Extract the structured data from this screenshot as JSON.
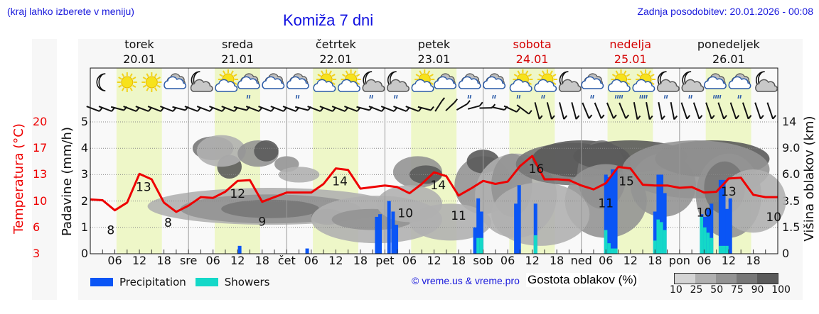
{
  "header": {
    "location_hint": "(kraj lahko izberete v meniju)",
    "title": "Komiža 7 dni",
    "last_update": "Zadnja posodobitev: 20.01.2026 - 00:08"
  },
  "days": [
    {
      "name": "torek",
      "date": "20.01",
      "weekend": false
    },
    {
      "name": "sreda",
      "date": "21.01",
      "weekend": false
    },
    {
      "name": "četrtek",
      "date": "22.01",
      "weekend": false
    },
    {
      "name": "petek",
      "date": "23.01",
      "weekend": false
    },
    {
      "name": "sobota",
      "date": "24.01",
      "weekend": true
    },
    {
      "name": "nedelja",
      "date": "25.01",
      "weekend": true
    },
    {
      "name": "ponedeljek",
      "date": "26.01",
      "weekend": false
    }
  ],
  "weather_icons": [
    "moon",
    "sun",
    "sun",
    "cloudy",
    "moon-cloud",
    "sun-cloud",
    "cloud-light-rain",
    "cloudy",
    "cloud-light-rain",
    "sun-cloud",
    "sun-cloud",
    "moon-cloud-rain",
    "moon-cloud-rain",
    "sun-cloud",
    "cloudy",
    "cloud-light-rain",
    "cloud-light-rain",
    "sun-cloud-rain",
    "sun-cloud-rain",
    "moon-cloud",
    "cloud-light-rain",
    "sun-cloud-heavy-rain",
    "sun-cloud-heavy-rain",
    "moon-cloud-rain",
    "moon-cloud-rain",
    "cloud-heavy-rain",
    "cloud-light-rain",
    "moon-cloud"
  ],
  "axes": {
    "left_temp_label": "Temperatura (°C)",
    "left_precip_label": "Padavine (mm/h)",
    "right_label": "Višina oblakov (km)",
    "temp_ticks": [
      "20",
      "17",
      "13",
      "10",
      "6",
      "3"
    ],
    "precip_ticks": [
      "5",
      "4",
      "3",
      "2",
      "1",
      "0"
    ],
    "cloud_height_ticks": [
      "14",
      "9.0",
      "6.0",
      "3.5",
      "1.5",
      "0"
    ],
    "x_ticks": [
      "06",
      "12",
      "18",
      "sre",
      "06",
      "12",
      "18",
      "čet",
      "06",
      "12",
      "18",
      "pet",
      "06",
      "12",
      "18",
      "sob",
      "06",
      "12",
      "18",
      "ned",
      "06",
      "12",
      "18",
      "pon",
      "06",
      "12",
      "18"
    ]
  },
  "legend": {
    "precipitation": "Precipitation",
    "showers": "Showers",
    "precipitation_color": "#0a55f5",
    "showers_color": "#14d8c8",
    "credit": "© vreme.us & vreme.pro",
    "cloud_density_title": "Gostota oblakov (%)",
    "cloud_density_values": [
      "10",
      "25",
      "50",
      "75",
      "90",
      "100"
    ],
    "cloud_density_colors": [
      "#d4d4d4",
      "#b0b0b0",
      "#939393",
      "#777777",
      "#5a5a5a"
    ]
  },
  "chart_data": {
    "type": "line",
    "title": "Komiža 7 dni",
    "xlabel": "",
    "ylabel": "Padavine (mm/h)",
    "ylim": [
      0,
      5
    ],
    "temp_range": [
      3,
      20
    ],
    "grid": true,
    "x_hours_start": "20.01 00:00",
    "temperature_series": {
      "name": "Temperatura (°C)",
      "color": "#ee0000",
      "points": [
        [
          0,
          10.0
        ],
        [
          3,
          9.9
        ],
        [
          6,
          8.6
        ],
        [
          9,
          9.6
        ],
        [
          12,
          13.3
        ],
        [
          15,
          12.6
        ],
        [
          18,
          9.6
        ],
        [
          21,
          8.4
        ],
        [
          24,
          9.2
        ],
        [
          27,
          10.3
        ],
        [
          30,
          10.2
        ],
        [
          33,
          11.0
        ],
        [
          36,
          12.4
        ],
        [
          39,
          12.5
        ],
        [
          42,
          9.7
        ],
        [
          45,
          10.3
        ],
        [
          48,
          10.9
        ],
        [
          51,
          10.9
        ],
        [
          54,
          10.9
        ],
        [
          57,
          12.0
        ],
        [
          60,
          14.0
        ],
        [
          63,
          13.8
        ],
        [
          66,
          11.4
        ],
        [
          69,
          11.6
        ],
        [
          72,
          11.8
        ],
        [
          75,
          11.6
        ],
        [
          78,
          10.8
        ],
        [
          81,
          12.0
        ],
        [
          84,
          13.5
        ],
        [
          87,
          13.0
        ],
        [
          90,
          10.5
        ],
        [
          93,
          11.4
        ],
        [
          96,
          12.4
        ],
        [
          99,
          12.0
        ],
        [
          102,
          12.3
        ],
        [
          105,
          14.3
        ],
        [
          108,
          15.6
        ],
        [
          111,
          12.6
        ],
        [
          114,
          12.6
        ],
        [
          117,
          12.5
        ],
        [
          120,
          11.8
        ],
        [
          123,
          11.3
        ],
        [
          126,
          12.1
        ],
        [
          129,
          14.2
        ],
        [
          132,
          14.0
        ],
        [
          135,
          11.9
        ],
        [
          138,
          11.8
        ],
        [
          141,
          11.8
        ],
        [
          144,
          11.5
        ],
        [
          147,
          11.6
        ],
        [
          150,
          10.9
        ],
        [
          153,
          11.0
        ],
        [
          156,
          12.7
        ],
        [
          159,
          12.8
        ],
        [
          162,
          10.6
        ],
        [
          165,
          10.3
        ],
        [
          168,
          10.3
        ]
      ],
      "labels": [
        {
          "hour": 5,
          "value": "8",
          "pos": "below"
        },
        {
          "hour": 13,
          "value": "13",
          "pos": "above"
        },
        {
          "hour": 19,
          "value": "8",
          "pos": "below"
        },
        {
          "hour": 36,
          "value": "12",
          "pos": "above"
        },
        {
          "hour": 42,
          "value": "9",
          "pos": "below"
        },
        {
          "hour": 61,
          "value": "14",
          "pos": "above"
        },
        {
          "hour": 77,
          "value": "10",
          "pos": "below"
        },
        {
          "hour": 85,
          "value": "14",
          "pos": "above"
        },
        {
          "hour": 90,
          "value": "11",
          "pos": "below"
        },
        {
          "hour": 109,
          "value": "16",
          "pos": "above"
        },
        {
          "hour": 126,
          "value": "11",
          "pos": "below"
        },
        {
          "hour": 131,
          "value": "15",
          "pos": "above"
        },
        {
          "hour": 150,
          "value": "10",
          "pos": "below"
        },
        {
          "hour": 156,
          "value": "13",
          "pos": "above"
        },
        {
          "hour": 167,
          "value": "10",
          "pos": "below"
        }
      ]
    },
    "precipitation_bars": [
      {
        "hour": 36.5,
        "total": 0.3,
        "showers": 0
      },
      {
        "hour": 53.0,
        "total": 0.2,
        "showers": 0
      },
      {
        "hour": 70.0,
        "total": 1.4,
        "showers": 0
      },
      {
        "hour": 70.8,
        "total": 1.5,
        "showers": 0
      },
      {
        "hour": 73.0,
        "total": 2.0,
        "showers": 0
      },
      {
        "hour": 74.0,
        "total": 1.6,
        "showers": 0
      },
      {
        "hour": 74.8,
        "total": 1.1,
        "showers": 0
      },
      {
        "hour": 94.0,
        "total": 1.0,
        "showers": 0
      },
      {
        "hour": 94.8,
        "total": 2.1,
        "showers": 0.6
      },
      {
        "hour": 95.6,
        "total": 1.6,
        "showers": 0.6
      },
      {
        "hour": 104.0,
        "total": 1.9,
        "showers": 0
      },
      {
        "hour": 104.8,
        "total": 2.6,
        "showers": 0
      },
      {
        "hour": 108.8,
        "total": 1.9,
        "showers": 0.7
      },
      {
        "hour": 126.0,
        "total": 3.0,
        "showers": 0.9
      },
      {
        "hour": 126.8,
        "total": 2.9,
        "showers": 0.4
      },
      {
        "hour": 127.6,
        "total": 3.2,
        "showers": 0.2
      },
      {
        "hour": 128.4,
        "total": 3.2,
        "showers": 0.2
      },
      {
        "hour": 138.0,
        "total": 1.6,
        "showers": 0.5
      },
      {
        "hour": 138.8,
        "total": 3.0,
        "showers": 1.3
      },
      {
        "hour": 139.6,
        "total": 3.0,
        "showers": 1.2
      },
      {
        "hour": 140.4,
        "total": 2.3,
        "showers": 0.9
      },
      {
        "hour": 149.4,
        "total": 1.5,
        "showers": 1.4
      },
      {
        "hour": 150.2,
        "total": 1.4,
        "showers": 1.0
      },
      {
        "hour": 151.0,
        "total": 1.7,
        "showers": 0.8
      },
      {
        "hour": 151.8,
        "total": 1.9,
        "showers": 0.6
      },
      {
        "hour": 154.0,
        "total": 2.8,
        "showers": 0.3
      },
      {
        "hour": 154.8,
        "total": 2.8,
        "showers": 0.3
      },
      {
        "hour": 155.6,
        "total": 1.7,
        "showers": 0.3
      },
      {
        "hour": 156.4,
        "total": 2.1,
        "showers": 0
      }
    ],
    "daylight_hours": [
      6.4,
      17.5
    ]
  }
}
